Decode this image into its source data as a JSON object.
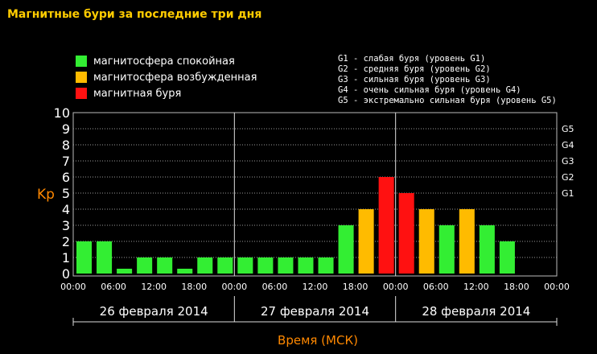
{
  "title": "Магнитные бури за последние три дня",
  "legend": [
    {
      "label": "магнитосфера спокойная",
      "color": "#33ee33"
    },
    {
      "label": "магнитосфера возбужденная",
      "color": "#ffbb00"
    },
    {
      "label": "магнитная буря",
      "color": "#ff1111"
    }
  ],
  "g_legend": [
    "G1 - слабая буря (уровень G1)",
    "G2 - средняя буря (уровень G2)",
    "G3 - сильная буря (уровень G3)",
    "G4 - очень сильная буря (уровень G4)",
    "G5 - экстремально сильная буря (уровень G5)"
  ],
  "chart_data": {
    "type": "bar",
    "title": "Магнитные бури за последние три дня",
    "ylabel": "Kp",
    "xlabel": "Время (МСК)",
    "ylim": [
      0,
      10
    ],
    "yticks": [
      "0",
      "1",
      "2",
      "3",
      "4",
      "5",
      "6",
      "7",
      "8",
      "9",
      "10"
    ],
    "right_ticks": [
      {
        "label": "G1",
        "y": 5
      },
      {
        "label": "G2",
        "y": 6
      },
      {
        "label": "G3",
        "y": 7
      },
      {
        "label": "G4",
        "y": 8
      },
      {
        "label": "G5",
        "y": 9
      }
    ],
    "xticks": [
      "00:00",
      "06:00",
      "12:00",
      "18:00",
      "00:00",
      "06:00",
      "12:00",
      "18:00",
      "00:00",
      "06:00",
      "12:00",
      "18:00",
      "00:00"
    ],
    "days": [
      "26 февраля 2014",
      "27 февраля 2014",
      "28 февраля 2014"
    ],
    "grid": true,
    "values": [
      2,
      2,
      0.3,
      1,
      1,
      0.3,
      1,
      1,
      1,
      1,
      1,
      1,
      1,
      3,
      4,
      6,
      5,
      4,
      3,
      4,
      3,
      2
    ],
    "colors": [
      "#33ee33",
      "#33ee33",
      "#33ee33",
      "#33ee33",
      "#33ee33",
      "#33ee33",
      "#33ee33",
      "#33ee33",
      "#33ee33",
      "#33ee33",
      "#33ee33",
      "#33ee33",
      "#33ee33",
      "#33ee33",
      "#ffbb00",
      "#ff1111",
      "#ff1111",
      "#ffbb00",
      "#33ee33",
      "#ffbb00",
      "#33ee33",
      "#33ee33"
    ]
  }
}
